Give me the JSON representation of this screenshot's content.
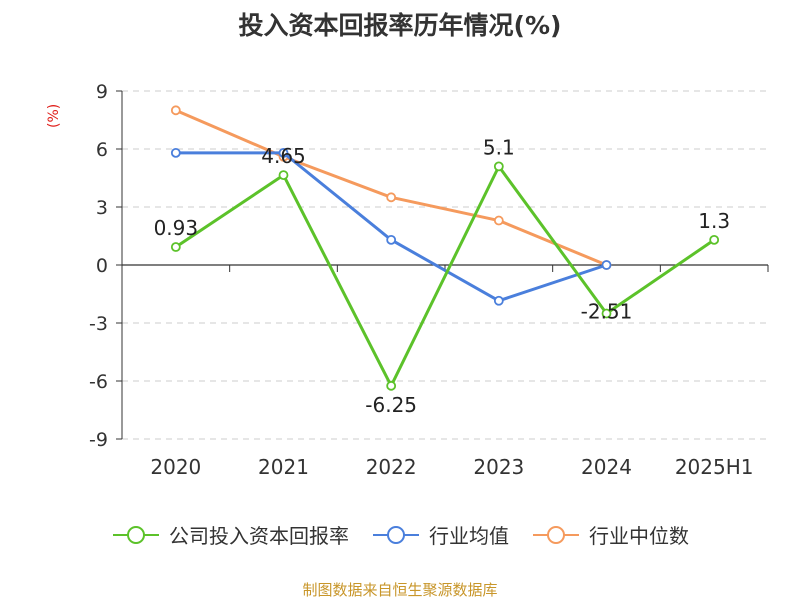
{
  "chart_data": {
    "type": "line",
    "title": "投入资本回报率历年情况(%)",
    "ylabel": "(%)",
    "categories": [
      "2020",
      "2021",
      "2022",
      "2023",
      "2024",
      "2025H1"
    ],
    "ylim": [
      -9,
      9
    ],
    "yticks": [
      9,
      6,
      3,
      0,
      -3,
      -6,
      -9
    ],
    "grid": true,
    "legend_position": "bottom",
    "series": [
      {
        "name": "公司投入资本回报率",
        "color": "#5cc22a",
        "values": [
          0.93,
          4.65,
          -6.25,
          5.1,
          -2.51,
          1.3
        ],
        "labels": [
          "0.93",
          "4.65",
          "-6.25",
          "5.1",
          "-2.51",
          "1.3"
        ]
      },
      {
        "name": "行业均值",
        "color": "#4a7fdc",
        "values": [
          5.8,
          5.8,
          1.3,
          -1.85,
          0.0,
          null
        ]
      },
      {
        "name": "行业中位数",
        "color": "#f59a5d",
        "values": [
          8.0,
          5.6,
          3.5,
          2.3,
          0.0,
          null
        ]
      }
    ]
  },
  "footer": "制图数据来自恒生聚源数据库"
}
